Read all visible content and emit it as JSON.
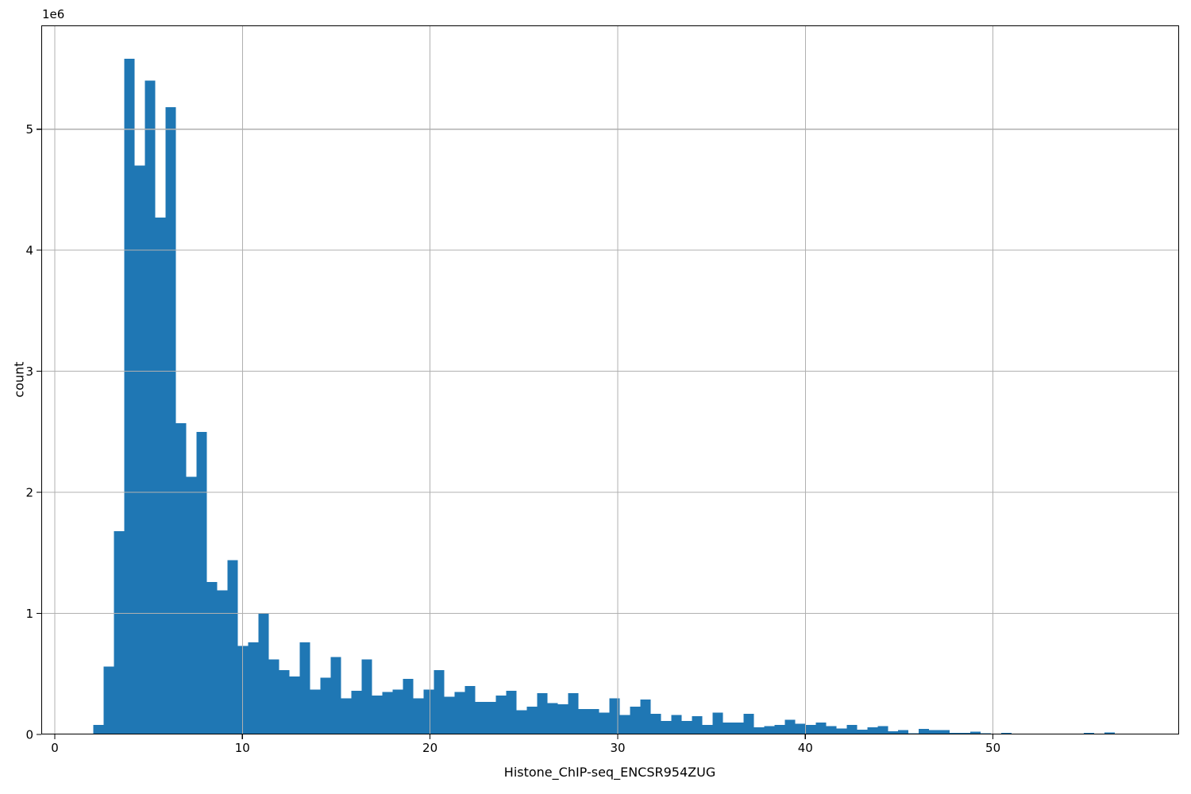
{
  "figure": {
    "background": "#ffffff"
  },
  "chart_data": {
    "type": "bar",
    "subtype": "histogram",
    "title": "",
    "xlabel": "Histone_ChIP-seq_ENCSR954ZUG",
    "ylabel": "count",
    "y_offset_label": "1e6",
    "bar_color": "#1f77b4",
    "grid_color": "#b0b0b0",
    "axis_color": "#000000",
    "grid": true,
    "legend": null,
    "xlim": [
      -0.72,
      59.92
    ],
    "ylim": [
      0,
      5857000
    ],
    "x_ticks": {
      "values": [
        0,
        10,
        20,
        30,
        40,
        50
      ],
      "labels": [
        "0",
        "10",
        "20",
        "30",
        "40",
        "50"
      ]
    },
    "y_ticks": {
      "values": [
        0,
        1000000,
        2000000,
        3000000,
        4000000,
        5000000
      ],
      "labels": [
        "0",
        "1",
        "2",
        "3",
        "4",
        "5"
      ]
    },
    "histogram": {
      "bin_start": 2.05,
      "bin_width": 0.55,
      "counts": [
        80000,
        560000,
        1680000,
        5580000,
        4700000,
        5400000,
        4270000,
        5180000,
        2570000,
        2130000,
        2500000,
        1260000,
        1190000,
        1440000,
        730000,
        760000,
        1000000,
        620000,
        530000,
        480000,
        760000,
        370000,
        470000,
        640000,
        300000,
        360000,
        620000,
        320000,
        350000,
        370000,
        460000,
        300000,
        370000,
        530000,
        310000,
        350000,
        400000,
        270000,
        270000,
        320000,
        360000,
        200000,
        230000,
        340000,
        260000,
        250000,
        340000,
        210000,
        210000,
        180000,
        300000,
        160000,
        230000,
        290000,
        170000,
        110000,
        160000,
        110000,
        150000,
        80000,
        180000,
        100000,
        100000,
        170000,
        60000,
        70000,
        80000,
        120000,
        90000,
        80000,
        100000,
        70000,
        50000,
        80000,
        40000,
        60000,
        70000,
        25000,
        35000,
        10000,
        45000,
        35000,
        35000,
        13000,
        13000,
        24000,
        9000,
        5000,
        13000,
        0,
        0,
        0,
        0,
        0,
        0,
        0,
        13000,
        0,
        17000,
        0
      ]
    }
  }
}
